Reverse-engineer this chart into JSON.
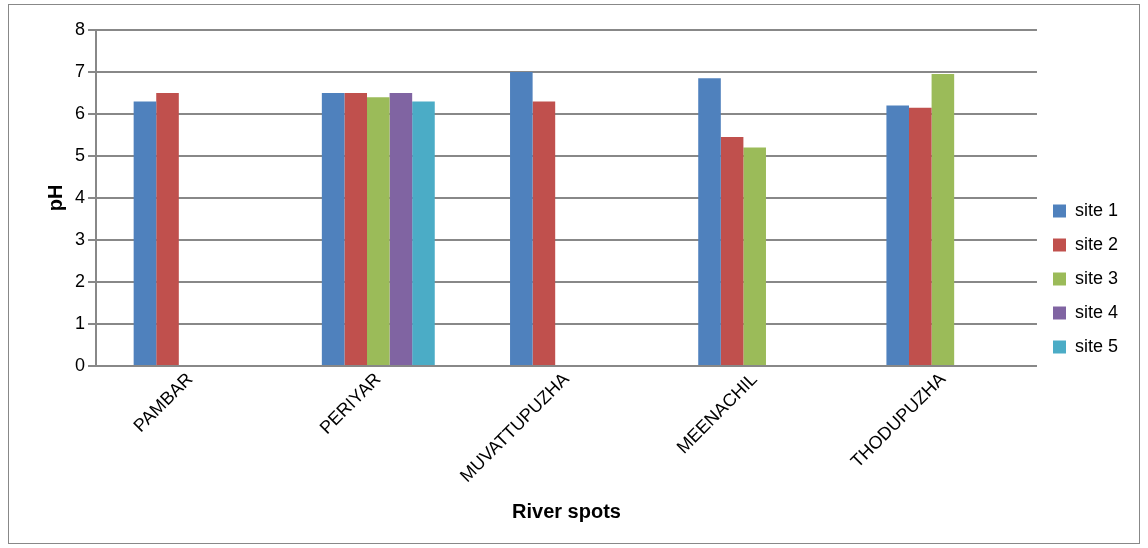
{
  "chart_data": {
    "type": "bar",
    "xlabel": "River spots",
    "ylabel": "pH",
    "categories": [
      "PAMBAR",
      "PERIYAR",
      "MUVATTUPUZHA",
      "MEENACHIL",
      "THODUPUZHA"
    ],
    "series": [
      {
        "name": "site 1",
        "color": "#4f81bd",
        "values": [
          6.3,
          6.5,
          7.0,
          6.85,
          6.2
        ]
      },
      {
        "name": "site 2",
        "color": "#c0504d",
        "values": [
          6.5,
          6.5,
          6.3,
          5.45,
          6.15
        ]
      },
      {
        "name": "site 3",
        "color": "#9bbb59",
        "values": [
          null,
          6.4,
          null,
          5.2,
          6.95
        ]
      },
      {
        "name": "site 4",
        "color": "#8064a2",
        "values": [
          null,
          6.5,
          null,
          null,
          null
        ]
      },
      {
        "name": "site 5",
        "color": "#4bacc6",
        "values": [
          null,
          6.3,
          null,
          null,
          null
        ]
      }
    ],
    "ylim": [
      0,
      8
    ],
    "yticks": [
      0,
      1,
      2,
      3,
      4,
      5,
      6,
      7,
      8
    ],
    "grid": "y",
    "legend": "right"
  }
}
